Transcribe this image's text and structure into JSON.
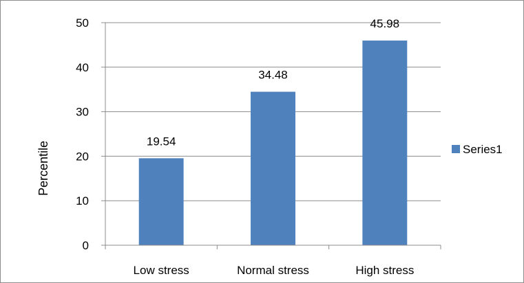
{
  "chart_data": {
    "type": "bar",
    "categories": [
      "Low stress",
      "Normal stress",
      "High stress"
    ],
    "series": [
      {
        "name": "Series1",
        "values": [
          19.54,
          34.48,
          45.98
        ],
        "color": "#4f81bd"
      }
    ],
    "data_labels": [
      "19.54",
      "34.48",
      "45.98"
    ],
    "ylabel": "Percentile",
    "ylim": [
      0,
      50
    ],
    "y_ticks": [
      0,
      10,
      20,
      30,
      40,
      50
    ],
    "grid": true,
    "legend_position": "right"
  }
}
